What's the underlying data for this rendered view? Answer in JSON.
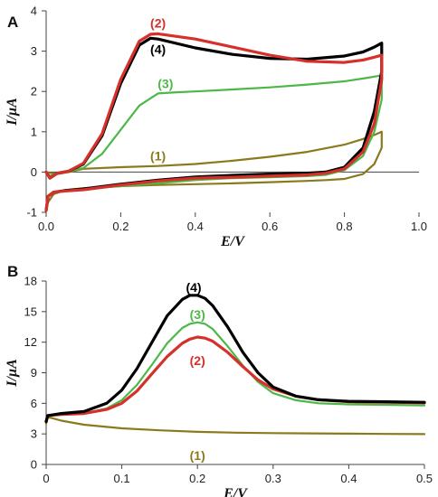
{
  "chart_data": [
    {
      "type": "line",
      "panel_label": "A",
      "xlabel": "E/V",
      "ylabel": "I/µA",
      "xlim": [
        0,
        1.0
      ],
      "ylim": [
        -1,
        4
      ],
      "x_ticks": [
        "0.0",
        "0.2",
        "0.4",
        "0.6",
        "0.8",
        "1.0"
      ],
      "y_ticks": [
        "-1",
        "0",
        "1",
        "2",
        "3",
        "4"
      ],
      "grid": false,
      "series": [
        {
          "name": "(1)",
          "color": "#8b7a1c",
          "label_at": [
            0.3,
            0.4
          ],
          "x": [
            0.0,
            0.01,
            0.03,
            0.06,
            0.1,
            0.2,
            0.3,
            0.4,
            0.5,
            0.6,
            0.7,
            0.8,
            0.85,
            0.88,
            0.9,
            0.9,
            0.88,
            0.85,
            0.8,
            0.75,
            0.7,
            0.6,
            0.5,
            0.4,
            0.3,
            0.2,
            0.1,
            0.05,
            0.02,
            0.005,
            0.0
          ],
          "y": [
            0.0,
            -0.02,
            -0.05,
            0.0,
            0.08,
            0.12,
            0.15,
            0.2,
            0.28,
            0.38,
            0.5,
            0.68,
            0.82,
            0.92,
            1.0,
            0.6,
            0.2,
            -0.05,
            -0.17,
            -0.2,
            -0.22,
            -0.25,
            -0.28,
            -0.3,
            -0.32,
            -0.35,
            -0.4,
            -0.45,
            -0.55,
            -0.75,
            -0.95
          ]
        },
        {
          "name": "(3)",
          "color": "#4cb848",
          "label_at": [
            0.32,
            2.2
          ],
          "x": [
            0.0,
            0.01,
            0.03,
            0.06,
            0.1,
            0.15,
            0.2,
            0.25,
            0.3,
            0.35,
            0.4,
            0.5,
            0.6,
            0.7,
            0.8,
            0.85,
            0.9,
            0.9,
            0.88,
            0.85,
            0.8,
            0.75,
            0.7,
            0.6,
            0.5,
            0.4,
            0.3,
            0.2,
            0.1,
            0.05,
            0.02,
            0.005,
            0.0
          ],
          "y": [
            0.0,
            -0.1,
            -0.02,
            0.02,
            0.1,
            0.45,
            1.05,
            1.65,
            1.95,
            1.98,
            2.0,
            2.05,
            2.1,
            2.17,
            2.25,
            2.32,
            2.4,
            1.8,
            1.0,
            0.4,
            0.05,
            -0.07,
            -0.1,
            -0.13,
            -0.15,
            -0.2,
            -0.28,
            -0.35,
            -0.42,
            -0.45,
            -0.5,
            -0.6,
            -0.9
          ]
        },
        {
          "name": "(4)",
          "color": "#000000",
          "label_at": [
            0.3,
            3.05
          ],
          "x": [
            0.0,
            0.01,
            0.03,
            0.06,
            0.1,
            0.15,
            0.2,
            0.25,
            0.28,
            0.3,
            0.4,
            0.5,
            0.6,
            0.7,
            0.8,
            0.85,
            0.88,
            0.9,
            0.9,
            0.88,
            0.85,
            0.8,
            0.75,
            0.7,
            0.6,
            0.5,
            0.4,
            0.3,
            0.2,
            0.1,
            0.05,
            0.02,
            0.005,
            0.0
          ],
          "y": [
            0.0,
            -0.15,
            -0.03,
            0.02,
            0.2,
            0.9,
            2.2,
            3.15,
            3.32,
            3.3,
            3.08,
            2.92,
            2.82,
            2.8,
            2.88,
            2.98,
            3.1,
            3.2,
            2.5,
            1.5,
            0.6,
            0.12,
            0.0,
            -0.03,
            -0.05,
            -0.08,
            -0.12,
            -0.2,
            -0.3,
            -0.42,
            -0.46,
            -0.5,
            -0.6,
            -0.95
          ]
        },
        {
          "name": "(2)",
          "color": "#d6302a",
          "label_at": [
            0.3,
            3.7
          ],
          "x": [
            0.0,
            0.01,
            0.03,
            0.06,
            0.1,
            0.15,
            0.2,
            0.25,
            0.28,
            0.3,
            0.4,
            0.5,
            0.6,
            0.7,
            0.8,
            0.85,
            0.88,
            0.9,
            0.9,
            0.88,
            0.85,
            0.8,
            0.75,
            0.7,
            0.6,
            0.5,
            0.4,
            0.3,
            0.2,
            0.1,
            0.05,
            0.02,
            0.005,
            0.0
          ],
          "y": [
            0.0,
            -0.15,
            -0.03,
            0.02,
            0.22,
            0.95,
            2.3,
            3.25,
            3.42,
            3.43,
            3.3,
            3.1,
            2.9,
            2.75,
            2.72,
            2.78,
            2.85,
            2.9,
            2.3,
            1.2,
            0.5,
            0.08,
            -0.03,
            -0.07,
            -0.1,
            -0.13,
            -0.15,
            -0.22,
            -0.32,
            -0.44,
            -0.47,
            -0.5,
            -0.6,
            -0.95
          ]
        }
      ]
    },
    {
      "type": "line",
      "panel_label": "B",
      "xlabel": "E/V",
      "ylabel": "I/µA",
      "xlim": [
        0,
        0.5
      ],
      "ylim": [
        0,
        18
      ],
      "x_ticks": [
        "0",
        "0.1",
        "0.2",
        "0.3",
        "0.4",
        "0.5"
      ],
      "y_ticks": [
        "0",
        "3",
        "6",
        "9",
        "12",
        "15",
        "18"
      ],
      "grid": false,
      "series": [
        {
          "name": "(1)",
          "color": "#8b7a1c",
          "label_at": [
            0.2,
            0.9
          ],
          "x": [
            0.0,
            0.002,
            0.005,
            0.02,
            0.05,
            0.1,
            0.15,
            0.2,
            0.25,
            0.3,
            0.35,
            0.4,
            0.45,
            0.5
          ],
          "y": [
            4.0,
            4.6,
            4.6,
            4.3,
            3.9,
            3.55,
            3.35,
            3.2,
            3.12,
            3.08,
            3.05,
            3.02,
            3.0,
            2.98
          ]
        },
        {
          "name": "(3)",
          "color": "#4cb848",
          "label_at": [
            0.2,
            14.7
          ],
          "x": [
            0.0,
            0.002,
            0.02,
            0.05,
            0.08,
            0.1,
            0.12,
            0.14,
            0.16,
            0.18,
            0.19,
            0.2,
            0.21,
            0.22,
            0.24,
            0.26,
            0.28,
            0.3,
            0.33,
            0.36,
            0.4,
            0.45,
            0.5
          ],
          "y": [
            4.2,
            4.8,
            4.9,
            5.0,
            5.5,
            6.3,
            7.8,
            9.8,
            11.9,
            13.4,
            13.8,
            13.95,
            13.8,
            13.3,
            11.6,
            9.7,
            8.1,
            7.0,
            6.3,
            6.0,
            5.9,
            5.85,
            5.8
          ]
        },
        {
          "name": "(2)",
          "color": "#d6302a",
          "label_at": [
            0.2,
            10.2
          ],
          "x": [
            0.0,
            0.002,
            0.02,
            0.05,
            0.08,
            0.1,
            0.12,
            0.14,
            0.16,
            0.18,
            0.19,
            0.2,
            0.21,
            0.22,
            0.24,
            0.26,
            0.28,
            0.3,
            0.33,
            0.36,
            0.4,
            0.45,
            0.5
          ],
          "y": [
            4.2,
            4.8,
            4.9,
            5.0,
            5.4,
            6.0,
            7.2,
            8.9,
            10.6,
            11.9,
            12.3,
            12.5,
            12.4,
            12.1,
            11.0,
            9.6,
            8.3,
            7.4,
            6.7,
            6.35,
            6.15,
            6.1,
            6.05
          ]
        },
        {
          "name": "(4)",
          "color": "#000000",
          "label_at": [
            0.195,
            17.4
          ],
          "x": [
            0.0,
            0.002,
            0.02,
            0.05,
            0.08,
            0.1,
            0.12,
            0.14,
            0.16,
            0.18,
            0.19,
            0.2,
            0.21,
            0.22,
            0.24,
            0.26,
            0.28,
            0.3,
            0.33,
            0.36,
            0.4,
            0.45,
            0.5
          ],
          "y": [
            4.2,
            4.8,
            5.0,
            5.2,
            6.0,
            7.3,
            9.4,
            12.0,
            14.6,
            16.2,
            16.6,
            16.6,
            16.3,
            15.6,
            13.5,
            11.0,
            9.0,
            7.6,
            6.7,
            6.35,
            6.2,
            6.15,
            6.1
          ]
        }
      ]
    }
  ]
}
